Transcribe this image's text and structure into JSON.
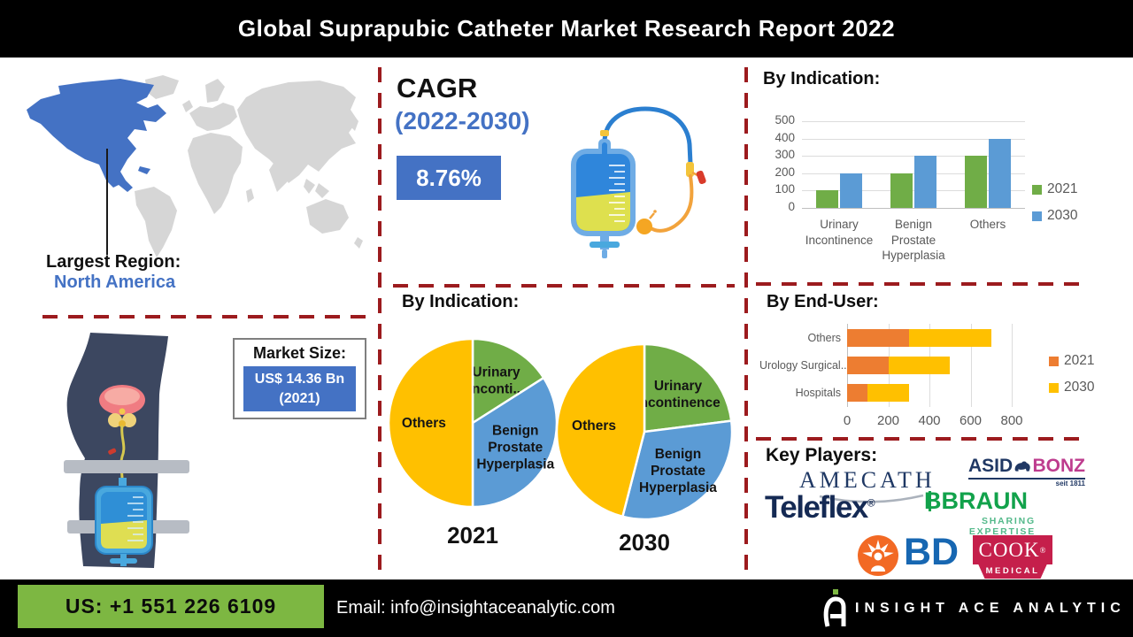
{
  "title": "Global Suprapubic Catheter Market Research Report 2022",
  "region": {
    "label": "Largest Region:",
    "value": "North America"
  },
  "cagr": {
    "label": "CAGR",
    "period": "(2022-2030)",
    "value": "8.76%"
  },
  "market_size": {
    "label": "Market Size:",
    "line1": "US$ 14.36 Bn",
    "line2": "(2021)"
  },
  "chart_data": [
    {
      "id": "by-indication-grouped-bar",
      "type": "bar",
      "title": "By Indication:",
      "categories": [
        "Urinary Incontinence",
        "Benign Prostate Hyperplasia",
        "Others"
      ],
      "series": [
        {
          "name": "2021",
          "color": "#70AD47",
          "values": [
            100,
            200,
            300
          ]
        },
        {
          "name": "2030",
          "color": "#5B9BD5",
          "values": [
            200,
            300,
            400
          ]
        }
      ],
      "ylim": [
        0,
        500
      ],
      "yticks": [
        0,
        100,
        200,
        300,
        400,
        500
      ],
      "grid": true,
      "legend_position": "right"
    },
    {
      "id": "by-indication-pies",
      "type": "pie",
      "title": "By Indication:",
      "pies": [
        {
          "label": "2021",
          "slices": [
            {
              "name": "Urinary Inconti...",
              "value": 16,
              "color": "#70AD47"
            },
            {
              "name": "Benign Prostate Hyperplasia",
              "value": 34,
              "color": "#5B9BD5"
            },
            {
              "name": "Others",
              "value": 50,
              "color": "#FFC000"
            }
          ]
        },
        {
          "label": "2030",
          "slices": [
            {
              "name": "Urinary Incontinence",
              "value": 23,
              "color": "#70AD47"
            },
            {
              "name": "Benign Prostate Hyperplasia",
              "value": 31,
              "color": "#5B9BD5"
            },
            {
              "name": "Others",
              "value": 46,
              "color": "#FFC000"
            }
          ]
        }
      ]
    },
    {
      "id": "by-end-user-stacked-bar",
      "type": "stacked-horizontal-bar",
      "title": "By  End-User:",
      "categories": [
        "Others",
        "Urology Surgical...",
        "Hospitals"
      ],
      "series": [
        {
          "name": "2021",
          "color": "#ED7D31",
          "values": [
            300,
            200,
            100
          ]
        },
        {
          "name": "2030",
          "color": "#FFC000",
          "values": [
            400,
            300,
            200
          ]
        }
      ],
      "xlim": [
        0,
        800
      ],
      "xticks": [
        0,
        200,
        400,
        600,
        800
      ],
      "grid": true,
      "legend_position": "right"
    }
  ],
  "key_players": {
    "label": "Key Players:",
    "items": [
      {
        "name": "AMECATH",
        "text": "AMECATH"
      },
      {
        "name": "ASID BONZ",
        "part1": "ASID",
        "part2": "BONZ",
        "tagline": "seit 1811"
      },
      {
        "name": "Teleflex",
        "text": "Teleflex",
        "reg": "®"
      },
      {
        "name": "B. Braun",
        "part1": "B",
        "part2": "BRAUN",
        "tagline": "SHARING EXPERTISE"
      },
      {
        "name": "BD",
        "text": "BD"
      },
      {
        "name": "Cook Medical",
        "text": "COOK",
        "reg": "®",
        "sub": "MEDICAL"
      }
    ]
  },
  "footer": {
    "phone": "US: +1 551 226 6109",
    "email": "Email: info@insightaceanalytic.com",
    "brand": "INSIGHT ACE ANALYTIC"
  },
  "colors": {
    "accent_blue": "#4472C4",
    "green_2021": "#70AD47",
    "blue_2030": "#5B9BD5",
    "orange_2021": "#ED7D31",
    "yellow_2030": "#FFC000",
    "dash_red": "#9C1B1E",
    "footer_green": "#7DB742"
  }
}
